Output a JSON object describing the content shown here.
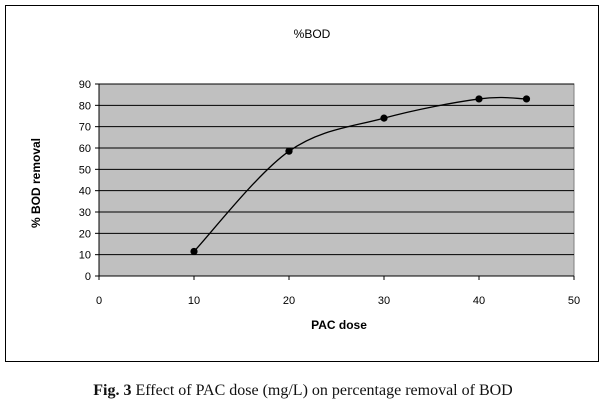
{
  "caption": {
    "label": "Fig. 3",
    "text": "Effect of PAC dose (mg/L) on percentage removal of BOD"
  },
  "chart_data": {
    "type": "line",
    "title": "%BOD",
    "xlabel": "PAC dose",
    "ylabel": "% BOD removal",
    "xlim": [
      0,
      50
    ],
    "ylim": [
      0,
      90
    ],
    "xticks": [
      "0",
      "10",
      "20",
      "30",
      "40",
      "50"
    ],
    "yticks": [
      "0",
      "10",
      "20",
      "30",
      "40",
      "50",
      "60",
      "70",
      "80",
      "90"
    ],
    "series": [
      {
        "x": [
          10,
          20,
          30,
          40,
          45
        ],
        "y": [
          11.5,
          58.5,
          74,
          83,
          83
        ]
      }
    ],
    "grid": "horizontal",
    "legend": "none",
    "colors": {
      "plot_area": "#c0c0c0",
      "line": "#000000",
      "marker": "#000000",
      "gridline": "#000000"
    }
  }
}
